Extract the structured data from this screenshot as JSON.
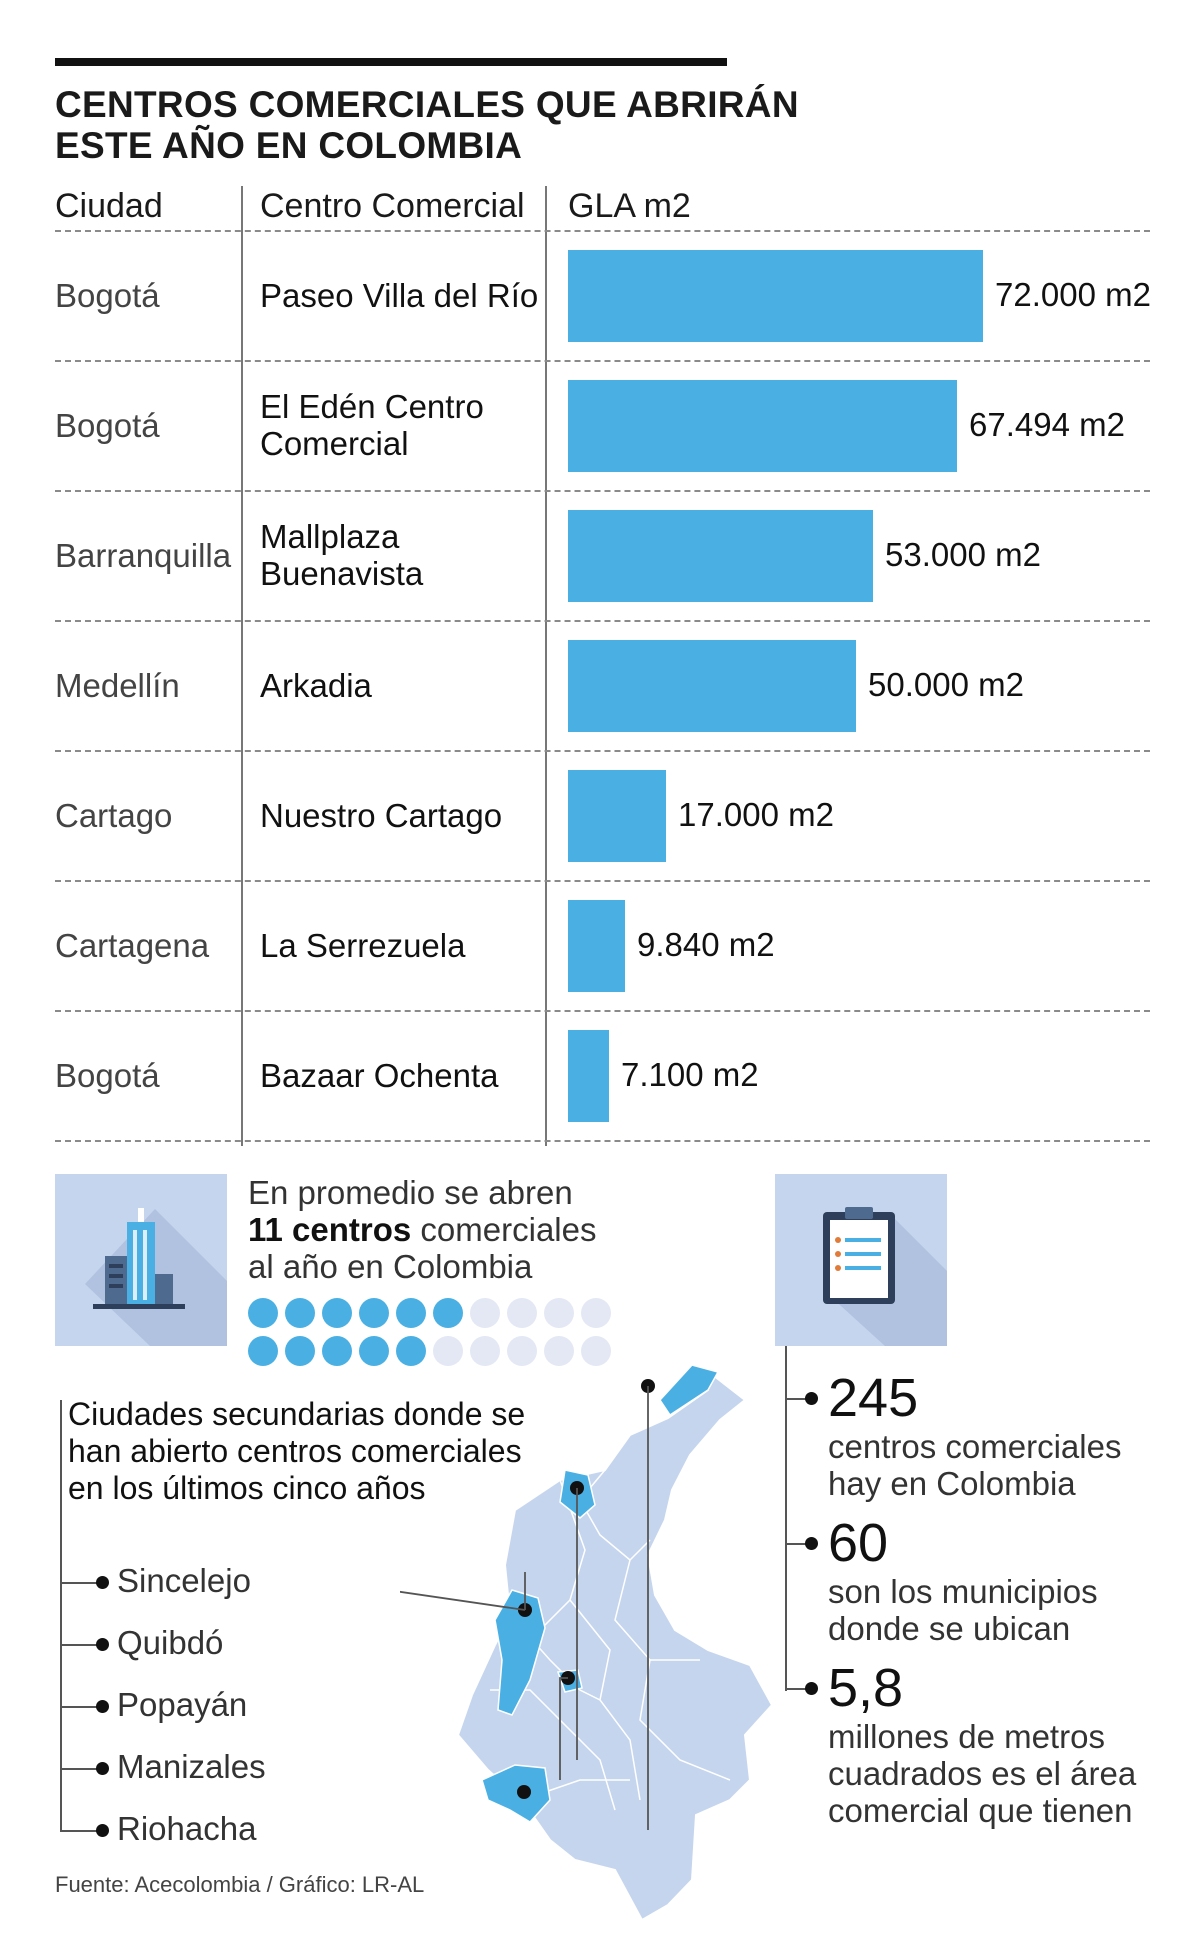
{
  "title": "CENTROS COMERCIALES QUE ABRIRÁN ESTE AÑO EN COLOMBIA",
  "headers": {
    "city": "Ciudad",
    "mall": "Centro Comercial",
    "gla": "GLA m2"
  },
  "chart_data": {
    "type": "bar",
    "orientation": "horizontal",
    "title": "CENTROS COMERCIALES QUE ABRIRÁN ESTE AÑO EN COLOMBIA",
    "categories": [
      "Paseo Villa del Río",
      "El Edén Centro Comercial",
      "Mallplaza Buenavista",
      "Arkadia",
      "Nuestro Cartago",
      "La Serrezuela",
      "Bazaar Ochenta"
    ],
    "cities": [
      "Bogotá",
      "Bogotá",
      "Barranquilla",
      "Medellín",
      "Cartago",
      "Cartagena",
      "Bogotá"
    ],
    "values": [
      72000,
      67494,
      53000,
      50000,
      17000,
      9840,
      7100
    ],
    "labels": [
      "72.000 m2",
      "67.494 m2",
      "53.000 m2",
      "50.000 m2",
      "17.000 m2",
      "9.840 m2",
      "7.100 m2"
    ],
    "color": "#4ab0e4"
  },
  "average": {
    "line1": "En promedio se abren",
    "number": "11 centros",
    "line2_rest": " comerciales",
    "line3": "al año en Colombia",
    "filled": 11,
    "total": 20
  },
  "secondary": {
    "title": "Ciudades secundarias donde se han abierto centros comerciales en los últimos cinco años",
    "cities": [
      "Sincelejo",
      "Quibdó",
      "Popayán",
      "Manizales",
      "Riohacha"
    ]
  },
  "stats": [
    {
      "number": "245",
      "text": "centros comerciales hay en Colombia"
    },
    {
      "number": "60",
      "text": "son los municipios donde se ubican"
    },
    {
      "number": "5,8",
      "text": "millones de metros cuadrados es el área comercial que tienen"
    }
  ],
  "icons": {
    "left": "buildings-icon",
    "right": "clipboard-icon",
    "map": "colombia-map"
  },
  "colors": {
    "accent": "#4ab0e4",
    "icon_bg": "#c5d5ee",
    "map": "#c5d5ee",
    "dot_empty": "#e3e8f4"
  },
  "source": "Fuente: Acecolombia / Gráfico: LR-AL"
}
